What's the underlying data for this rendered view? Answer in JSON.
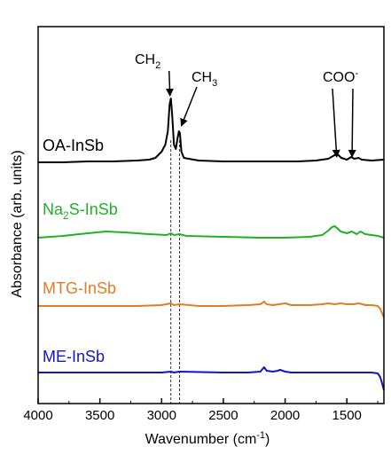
{
  "chart_data": {
    "type": "line",
    "title": "",
    "xlabel_main": "Wavenumber (cm",
    "xlabel_sup": "-1",
    "xlabel_tail": ")",
    "ylabel": "Absorbance (arb. units)",
    "xlim": [
      4000,
      1200
    ],
    "x_reversed": true,
    "x_ticks": [
      4000,
      3500,
      3000,
      2500,
      2000,
      1500
    ],
    "y_ticks_shown": false,
    "grid": false,
    "legend": "none",
    "series": [
      {
        "name": "OA-InSb",
        "label_parts": [
          {
            "t": "OA-InSb"
          }
        ],
        "color": "#000000",
        "points": [
          [
            4000,
            0.0
          ],
          [
            3800,
            0.0
          ],
          [
            3600,
            0.01
          ],
          [
            3400,
            0.01
          ],
          [
            3200,
            0.02
          ],
          [
            3100,
            0.03
          ],
          [
            3050,
            0.05
          ],
          [
            3000,
            0.12
          ],
          [
            2970,
            0.2
          ],
          [
            2950,
            0.35
          ],
          [
            2935,
            0.65
          ],
          [
            2925,
            0.72
          ],
          [
            2915,
            0.55
          ],
          [
            2900,
            0.2
          ],
          [
            2885,
            0.15
          ],
          [
            2870,
            0.28
          ],
          [
            2860,
            0.35
          ],
          [
            2852,
            0.33
          ],
          [
            2840,
            0.12
          ],
          [
            2820,
            0.05
          ],
          [
            2700,
            0.02
          ],
          [
            2500,
            0.01
          ],
          [
            2300,
            0.01
          ],
          [
            2100,
            0.01
          ],
          [
            1900,
            0.01
          ],
          [
            1750,
            0.02
          ],
          [
            1650,
            0.04
          ],
          [
            1600,
            0.08
          ],
          [
            1575,
            0.09
          ],
          [
            1545,
            0.05
          ],
          [
            1500,
            0.03
          ],
          [
            1465,
            0.06
          ],
          [
            1440,
            0.04
          ],
          [
            1405,
            0.05
          ],
          [
            1380,
            0.03
          ],
          [
            1300,
            0.02
          ],
          [
            1200,
            0.03
          ]
        ]
      },
      {
        "name": "Na2S-InSb",
        "label_parts": [
          {
            "t": "Na"
          },
          {
            "t": "2",
            "sub": true
          },
          {
            "t": "S-InSb"
          }
        ],
        "color": "#22b026",
        "points": [
          [
            4000,
            0.0
          ],
          [
            3800,
            0.02
          ],
          [
            3600,
            0.05
          ],
          [
            3450,
            0.07
          ],
          [
            3300,
            0.06
          ],
          [
            3100,
            0.04
          ],
          [
            2960,
            0.03
          ],
          [
            2925,
            0.05
          ],
          [
            2900,
            0.03
          ],
          [
            2855,
            0.04
          ],
          [
            2800,
            0.02
          ],
          [
            2500,
            0.01
          ],
          [
            2200,
            0.0
          ],
          [
            2000,
            0.0
          ],
          [
            1800,
            0.01
          ],
          [
            1700,
            0.03
          ],
          [
            1650,
            0.08
          ],
          [
            1620,
            0.12
          ],
          [
            1600,
            0.13
          ],
          [
            1580,
            0.11
          ],
          [
            1550,
            0.07
          ],
          [
            1500,
            0.05
          ],
          [
            1460,
            0.07
          ],
          [
            1420,
            0.04
          ],
          [
            1390,
            0.07
          ],
          [
            1350,
            0.04
          ],
          [
            1300,
            0.03
          ],
          [
            1250,
            0.02
          ],
          [
            1200,
            0.0
          ]
        ]
      },
      {
        "name": "MTG-InSb",
        "label_parts": [
          {
            "t": "MTG-InSb"
          }
        ],
        "color": "#e07e22",
        "points": [
          [
            4000,
            0.0
          ],
          [
            3800,
            0.0
          ],
          [
            3500,
            0.0
          ],
          [
            3200,
            0.0
          ],
          [
            3000,
            0.01
          ],
          [
            2925,
            0.03
          ],
          [
            2900,
            0.01
          ],
          [
            2855,
            0.02
          ],
          [
            2700,
            0.0
          ],
          [
            2500,
            0.0
          ],
          [
            2300,
            0.01
          ],
          [
            2200,
            0.02
          ],
          [
            2170,
            0.05
          ],
          [
            2150,
            0.02
          ],
          [
            2100,
            0.01
          ],
          [
            2050,
            0.02
          ],
          [
            2000,
            0.03
          ],
          [
            1950,
            0.01
          ],
          [
            1800,
            0.01
          ],
          [
            1700,
            0.02
          ],
          [
            1650,
            0.03
          ],
          [
            1600,
            0.02
          ],
          [
            1550,
            0.03
          ],
          [
            1500,
            0.02
          ],
          [
            1450,
            0.02
          ],
          [
            1400,
            0.03
          ],
          [
            1350,
            0.01
          ],
          [
            1300,
            0.01
          ],
          [
            1250,
            0.0
          ],
          [
            1230,
            -0.03
          ],
          [
            1215,
            -0.08
          ],
          [
            1200,
            -0.13
          ]
        ]
      },
      {
        "name": "ME-InSb",
        "label_parts": [
          {
            "t": "ME-InSb"
          }
        ],
        "color": "#1414c8",
        "points": [
          [
            4000,
            0.0
          ],
          [
            3800,
            0.0
          ],
          [
            3500,
            0.0
          ],
          [
            3200,
            0.0
          ],
          [
            3000,
            0.0
          ],
          [
            2925,
            0.01
          ],
          [
            2900,
            0.0
          ],
          [
            2855,
            0.01
          ],
          [
            2500,
            0.0
          ],
          [
            2300,
            0.0
          ],
          [
            2200,
            0.01
          ],
          [
            2170,
            0.06
          ],
          [
            2150,
            0.02
          ],
          [
            2100,
            0.01
          ],
          [
            2060,
            0.02
          ],
          [
            2040,
            0.03
          ],
          [
            2000,
            0.01
          ],
          [
            1950,
            0.0
          ],
          [
            1800,
            0.0
          ],
          [
            1600,
            0.0
          ],
          [
            1400,
            0.0
          ],
          [
            1300,
            0.0
          ],
          [
            1250,
            -0.01
          ],
          [
            1230,
            -0.05
          ],
          [
            1215,
            -0.12
          ],
          [
            1200,
            -0.2
          ]
        ]
      }
    ],
    "annotations": {
      "ch2": {
        "main": "CH",
        "sub": "2"
      },
      "ch3": {
        "main": "CH",
        "sub": "3"
      },
      "coo": {
        "main": "COO",
        "sup": "-"
      }
    },
    "dashed_lines_at": [
      2925,
      2855
    ],
    "axis_color": "#000000"
  }
}
